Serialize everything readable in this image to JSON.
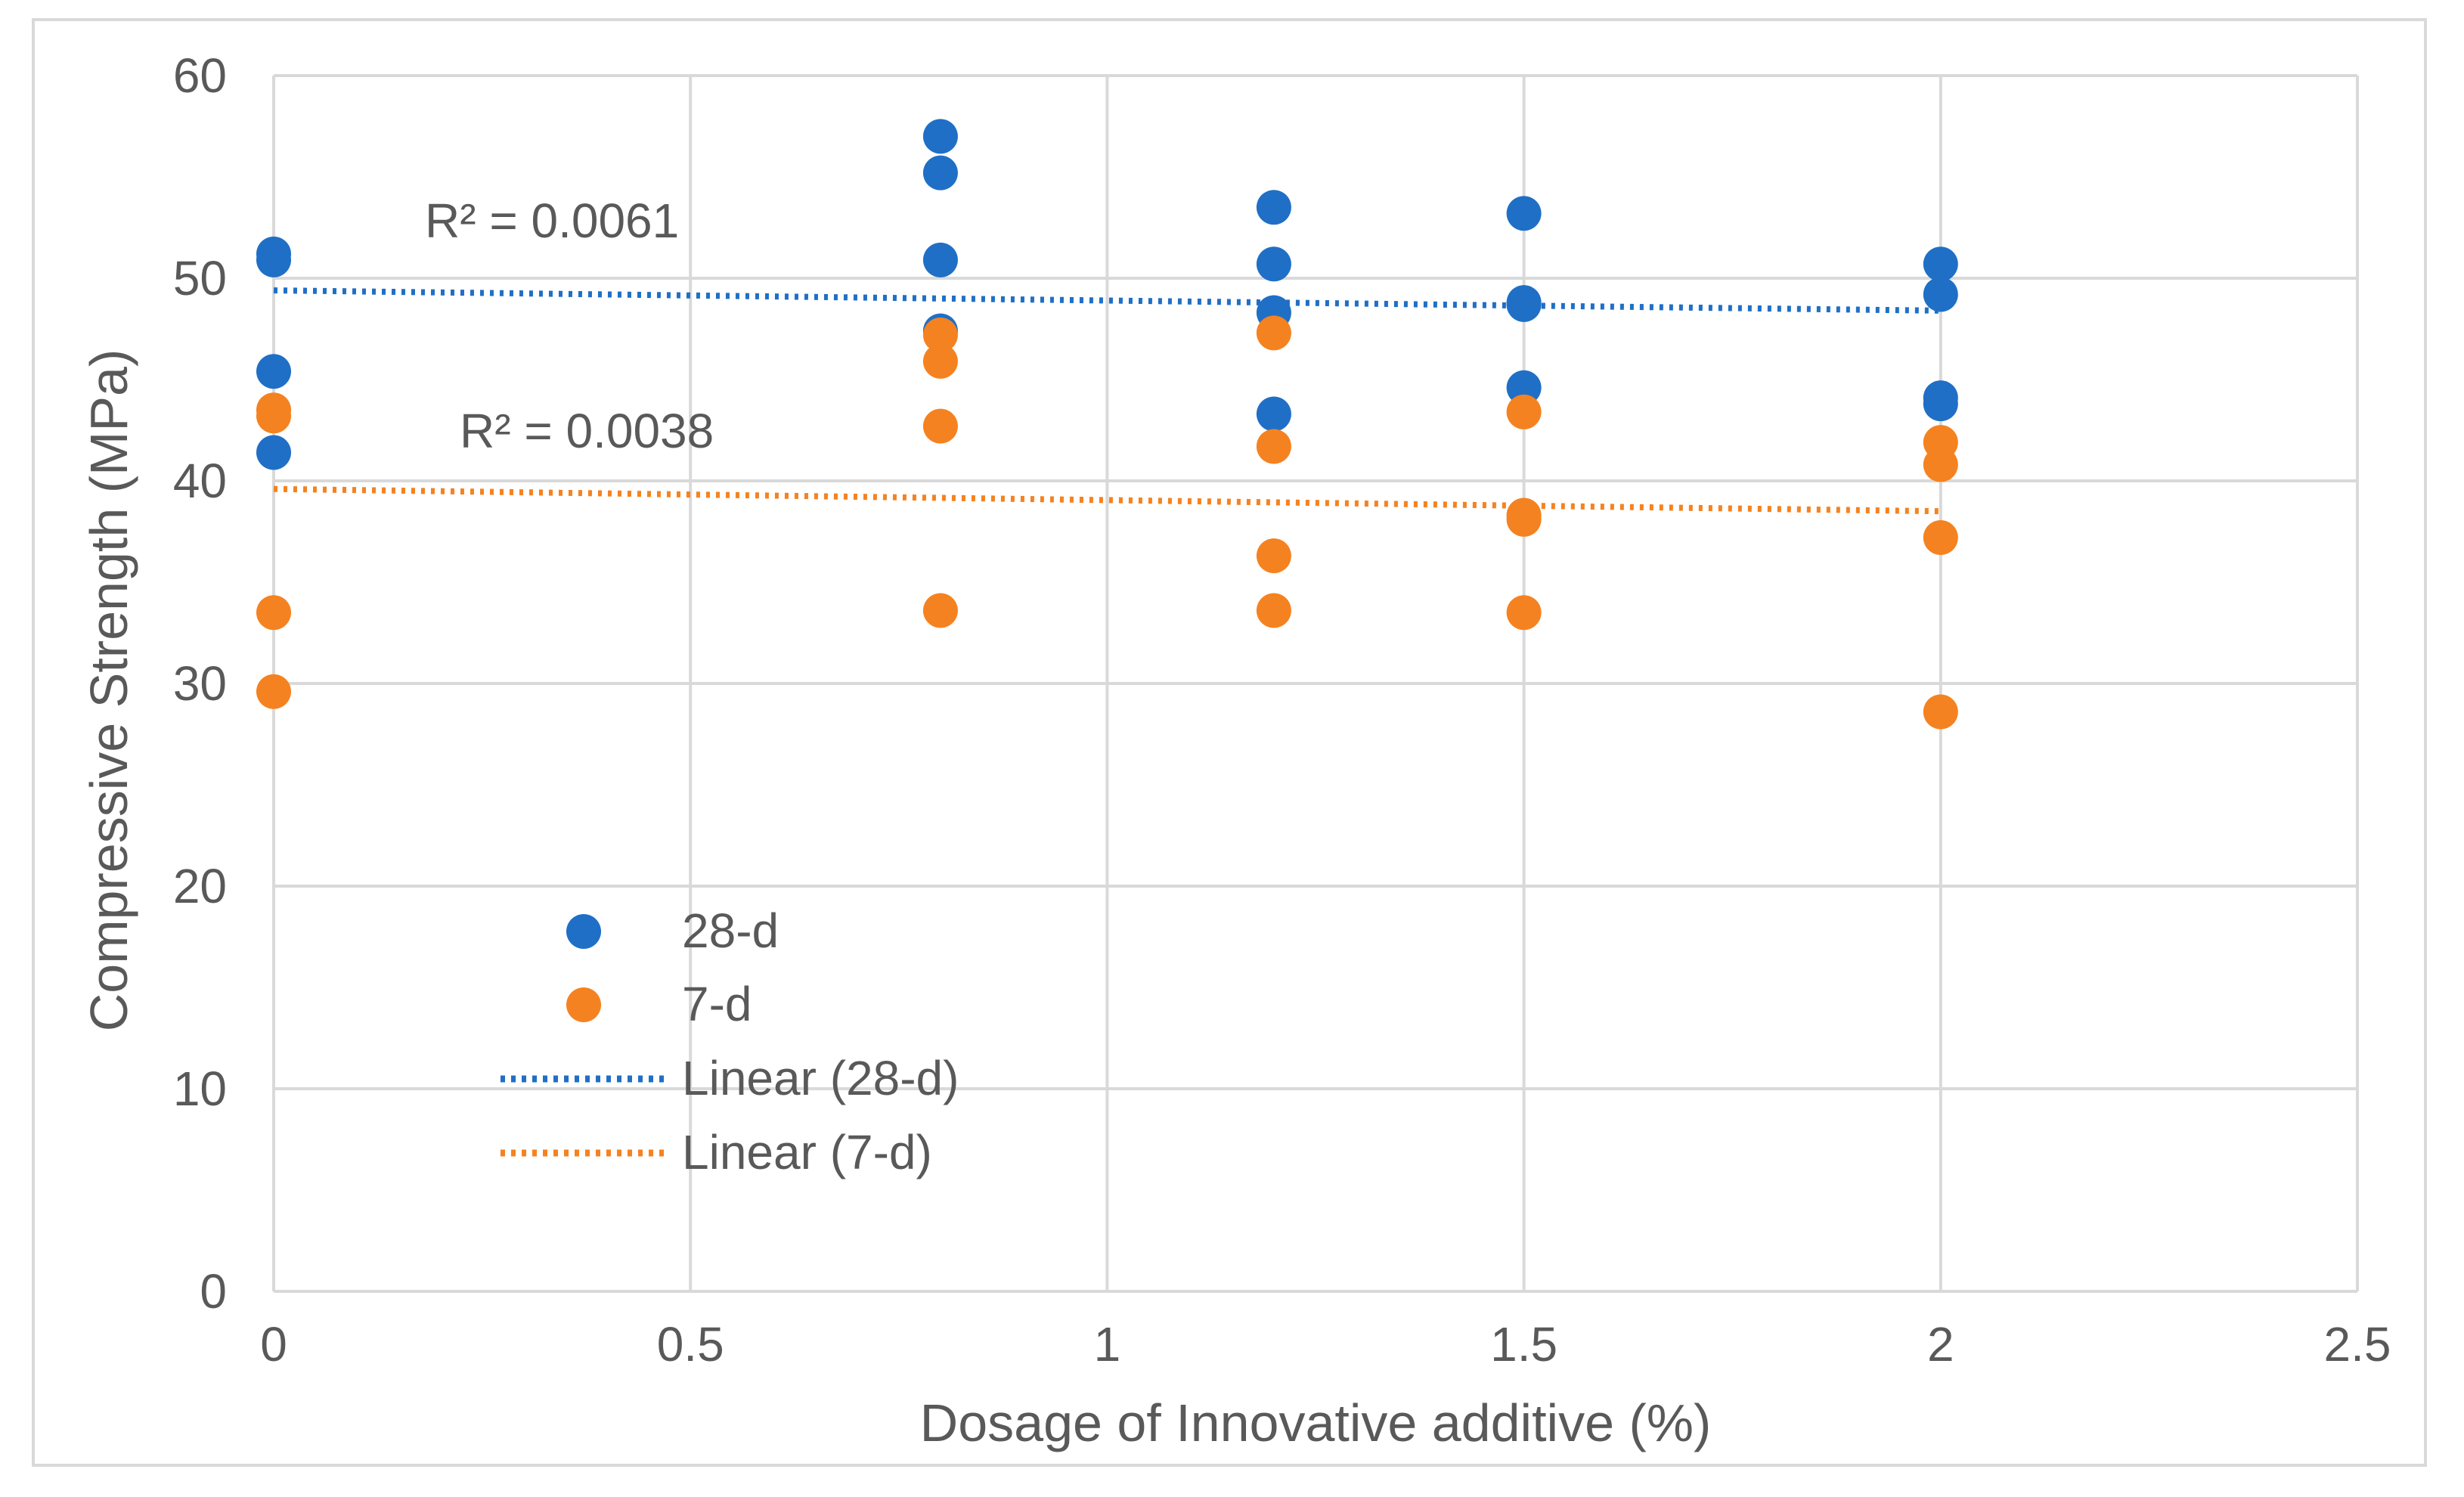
{
  "chart_data": {
    "type": "scatter",
    "title": "",
    "xlabel": "Dosage of Innovative additive (%)",
    "ylabel": "Compressive Strength (MPa)",
    "xlim": [
      0,
      2.5
    ],
    "ylim": [
      0,
      60
    ],
    "x_ticks": [
      0,
      0.5,
      1,
      1.5,
      2,
      2.5
    ],
    "x_tick_labels": [
      "0",
      "0.5",
      "1",
      "1.5",
      "2",
      "2.5"
    ],
    "y_ticks": [
      0,
      10,
      20,
      30,
      40,
      50,
      60
    ],
    "y_tick_labels": [
      "0",
      "10",
      "20",
      "30",
      "40",
      "50",
      "60"
    ],
    "grid": true,
    "legend_position": "left-center",
    "series": [
      {
        "name": "28-d",
        "color": "#1f6fc6",
        "points": [
          {
            "x": 0,
            "y": 51.2
          },
          {
            "x": 0,
            "y": 50.9
          },
          {
            "x": 0,
            "y": 45.4
          },
          {
            "x": 0,
            "y": 41.4
          },
          {
            "x": 0.8,
            "y": 57.0
          },
          {
            "x": 0.8,
            "y": 55.2
          },
          {
            "x": 0.8,
            "y": 50.9
          },
          {
            "x": 0.8,
            "y": 47.4
          },
          {
            "x": 1.2,
            "y": 53.5
          },
          {
            "x": 1.2,
            "y": 50.7
          },
          {
            "x": 1.2,
            "y": 48.3
          },
          {
            "x": 1.2,
            "y": 43.3
          },
          {
            "x": 1.5,
            "y": 53.2
          },
          {
            "x": 1.5,
            "y": 48.8
          },
          {
            "x": 1.5,
            "y": 48.7
          },
          {
            "x": 1.5,
            "y": 44.6
          },
          {
            "x": 2,
            "y": 50.7
          },
          {
            "x": 2,
            "y": 49.2
          },
          {
            "x": 2,
            "y": 44.1
          },
          {
            "x": 2,
            "y": 43.8
          }
        ]
      },
      {
        "name": "7-d",
        "color": "#f58220",
        "points": [
          {
            "x": 0,
            "y": 43.5
          },
          {
            "x": 0,
            "y": 43.2
          },
          {
            "x": 0,
            "y": 33.5
          },
          {
            "x": 0,
            "y": 29.6
          },
          {
            "x": 0.8,
            "y": 47.2
          },
          {
            "x": 0.8,
            "y": 45.9
          },
          {
            "x": 0.8,
            "y": 42.7
          },
          {
            "x": 0.8,
            "y": 33.6
          },
          {
            "x": 1.2,
            "y": 47.3
          },
          {
            "x": 1.2,
            "y": 41.7
          },
          {
            "x": 1.2,
            "y": 36.3
          },
          {
            "x": 1.2,
            "y": 33.6
          },
          {
            "x": 1.5,
            "y": 43.4
          },
          {
            "x": 1.5,
            "y": 38.3
          },
          {
            "x": 1.5,
            "y": 38.1
          },
          {
            "x": 1.5,
            "y": 33.5
          },
          {
            "x": 2,
            "y": 41.9
          },
          {
            "x": 2,
            "y": 40.8
          },
          {
            "x": 2,
            "y": 37.2
          },
          {
            "x": 2,
            "y": 28.6
          }
        ]
      }
    ],
    "trendlines": [
      {
        "name": "Linear (28-d)",
        "series": "28-d",
        "color": "#1f6fc6",
        "x": [
          0,
          2
        ],
        "y": [
          49.4,
          48.4
        ],
        "r2_label": "R² = 0.0061"
      },
      {
        "name": "Linear (7-d)",
        "series": "7-d",
        "color": "#f58220",
        "x": [
          0,
          2
        ],
        "y": [
          39.6,
          38.5
        ],
        "r2_label": "R² = 0.0038"
      }
    ],
    "legend": [
      "28-d",
      "7-d",
      "Linear (28-d)",
      "Linear (7-d)"
    ]
  }
}
